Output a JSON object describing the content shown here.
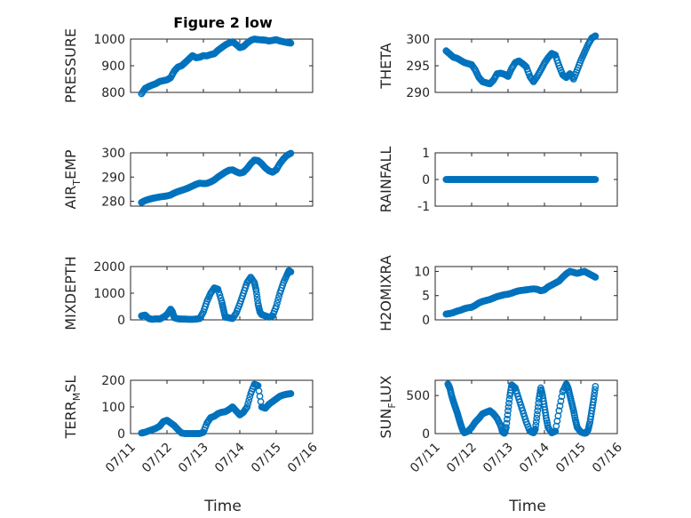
{
  "figure": {
    "title": "Figure 2 low",
    "marker_color": "#0072BD",
    "axis_color": "#262626"
  },
  "chart_data": [
    {
      "type": "scatter",
      "id": "pressure",
      "title": "Figure 2 low",
      "ylabel": "PRESSURE",
      "xlabel": "",
      "ylim": [
        800,
        1000
      ],
      "yticks": [
        800,
        900,
        1000
      ],
      "xlim": [
        0,
        5
      ],
      "xticks": [
        0,
        1,
        2,
        3,
        4,
        5
      ],
      "xticklabels": [],
      "grid": true,
      "x": [
        0.3,
        0.4,
        0.5,
        0.6,
        0.7,
        0.8,
        0.9,
        1.0,
        1.1,
        1.2,
        1.3,
        1.4,
        1.5,
        1.6,
        1.7,
        1.8,
        1.9,
        2.0,
        2.1,
        2.2,
        2.3,
        2.4,
        2.5,
        2.6,
        2.7,
        2.8,
        2.9,
        3.0,
        3.1,
        3.2,
        3.3,
        3.4,
        3.5,
        3.6,
        3.7,
        3.8,
        3.9,
        4.0,
        4.1,
        4.2,
        4.3,
        4.4
      ],
      "y": [
        795,
        815,
        822,
        828,
        833,
        841,
        844,
        847,
        855,
        880,
        895,
        900,
        912,
        925,
        938,
        930,
        932,
        938,
        937,
        942,
        945,
        958,
        968,
        978,
        985,
        990,
        980,
        968,
        972,
        985,
        995,
        1000,
        998,
        997,
        996,
        993,
        995,
        998,
        993,
        990,
        987,
        985
      ]
    },
    {
      "type": "scatter",
      "id": "theta",
      "ylabel": "THETA",
      "xlabel": "",
      "ylim": [
        290,
        300
      ],
      "yticks": [
        290,
        295,
        300
      ],
      "xlim": [
        0,
        5
      ],
      "xticks": [
        0,
        1,
        2,
        3,
        4,
        5
      ],
      "xticklabels": [],
      "grid": true,
      "x": [
        0.3,
        0.4,
        0.5,
        0.6,
        0.7,
        0.8,
        0.9,
        1.0,
        1.1,
        1.2,
        1.3,
        1.4,
        1.5,
        1.6,
        1.7,
        1.8,
        1.9,
        2.0,
        2.1,
        2.2,
        2.3,
        2.4,
        2.5,
        2.6,
        2.7,
        2.8,
        2.9,
        3.0,
        3.1,
        3.2,
        3.3,
        3.4,
        3.5,
        3.6,
        3.7,
        3.8,
        3.9,
        4.0,
        4.1,
        4.2,
        4.3,
        4.4
      ],
      "y": [
        297.8,
        297.2,
        296.6,
        296.4,
        296.0,
        295.6,
        295.4,
        295.2,
        294.2,
        292.8,
        292.0,
        291.8,
        291.6,
        292.3,
        293.5,
        293.6,
        293.4,
        293.0,
        294.5,
        295.6,
        295.9,
        295.4,
        294.8,
        293.0,
        292.0,
        293.0,
        294.2,
        295.5,
        296.5,
        297.3,
        297.0,
        295.0,
        293.3,
        292.8,
        293.5,
        292.5,
        294.2,
        296.0,
        297.5,
        299.0,
        300.2,
        300.6
      ]
    },
    {
      "type": "scatter",
      "id": "air_temp",
      "ylabel": "AIR_TEMP",
      "ylabel_base": "AIR",
      "ylabel_sub": "T",
      "ylabel_rest": "EMP",
      "xlabel": "",
      "ylim": [
        278,
        300
      ],
      "yticks": [
        280,
        290,
        300
      ],
      "xlim": [
        0,
        5
      ],
      "xticks": [
        0,
        1,
        2,
        3,
        4,
        5
      ],
      "xticklabels": [],
      "grid": true,
      "x": [
        0.3,
        0.4,
        0.5,
        0.6,
        0.7,
        0.8,
        0.9,
        1.0,
        1.1,
        1.2,
        1.3,
        1.4,
        1.5,
        1.6,
        1.7,
        1.8,
        1.9,
        2.0,
        2.1,
        2.2,
        2.3,
        2.4,
        2.5,
        2.6,
        2.7,
        2.8,
        2.9,
        3.0,
        3.1,
        3.2,
        3.3,
        3.4,
        3.5,
        3.6,
        3.7,
        3.8,
        3.9,
        4.0,
        4.1,
        4.2,
        4.3,
        4.4
      ],
      "y": [
        279.5,
        280.3,
        280.8,
        281.2,
        281.5,
        281.8,
        282.0,
        282.2,
        282.6,
        283.4,
        284.0,
        284.5,
        285.0,
        285.6,
        286.3,
        287.0,
        287.5,
        287.3,
        287.4,
        288.0,
        288.8,
        290.0,
        291.0,
        292.0,
        292.8,
        293.0,
        292.2,
        291.6,
        292.0,
        293.5,
        295.5,
        297.0,
        296.8,
        295.5,
        293.8,
        292.6,
        292.0,
        293.0,
        295.5,
        297.5,
        299.0,
        299.8
      ]
    },
    {
      "type": "scatter",
      "id": "rainfall",
      "ylabel": "RAINFALL",
      "xlabel": "",
      "ylim": [
        -1,
        1
      ],
      "yticks": [
        -1,
        0,
        1
      ],
      "xlim": [
        0,
        5
      ],
      "xticks": [
        0,
        1,
        2,
        3,
        4,
        5
      ],
      "xticklabels": [],
      "grid": true,
      "x": [
        0.3,
        0.4,
        0.5,
        0.6,
        0.7,
        0.8,
        0.9,
        1.0,
        1.1,
        1.2,
        1.3,
        1.4,
        1.5,
        1.6,
        1.7,
        1.8,
        1.9,
        2.0,
        2.1,
        2.2,
        2.3,
        2.4,
        2.5,
        2.6,
        2.7,
        2.8,
        2.9,
        3.0,
        3.1,
        3.2,
        3.3,
        3.4,
        3.5,
        3.6,
        3.7,
        3.8,
        3.9,
        4.0,
        4.1,
        4.2,
        4.3,
        4.4
      ],
      "y": [
        0,
        0,
        0,
        0,
        0,
        0,
        0,
        0,
        0,
        0,
        0,
        0,
        0,
        0,
        0,
        0,
        0,
        0,
        0,
        0,
        0,
        0,
        0,
        0,
        0,
        0,
        0,
        0,
        0,
        0,
        0,
        0,
        0,
        0,
        0,
        0,
        0,
        0,
        0,
        0,
        0,
        0
      ]
    },
    {
      "type": "scatter",
      "id": "mixdepth",
      "ylabel": "MIXDEPTH",
      "xlabel": "",
      "ylim": [
        0,
        2000
      ],
      "yticks": [
        0,
        1000,
        2000
      ],
      "xlim": [
        0,
        5
      ],
      "xticks": [
        0,
        1,
        2,
        3,
        4,
        5
      ],
      "xticklabels": [],
      "grid": true,
      "x": [
        0.3,
        0.4,
        0.5,
        0.6,
        0.7,
        0.8,
        0.9,
        1.0,
        1.1,
        1.15,
        1.2,
        1.3,
        1.4,
        1.5,
        1.6,
        1.7,
        1.8,
        1.9,
        2.0,
        2.1,
        2.2,
        2.3,
        2.4,
        2.5,
        2.55,
        2.6,
        2.7,
        2.8,
        2.9,
        3.0,
        3.1,
        3.2,
        3.3,
        3.4,
        3.45,
        3.5,
        3.55,
        3.6,
        3.7,
        3.8,
        3.9,
        4.0,
        4.1,
        4.2,
        4.3,
        4.35,
        4.4
      ],
      "y": [
        150,
        180,
        50,
        20,
        40,
        30,
        100,
        200,
        400,
        300,
        80,
        40,
        30,
        30,
        20,
        20,
        30,
        50,
        300,
        700,
        1000,
        1200,
        1150,
        700,
        400,
        100,
        80,
        50,
        250,
        600,
        1000,
        1400,
        1600,
        1400,
        1100,
        600,
        300,
        200,
        150,
        100,
        150,
        500,
        1000,
        1400,
        1700,
        1850,
        1800
      ]
    },
    {
      "type": "scatter",
      "id": "h2omixra",
      "ylabel": "H2OMIXRA",
      "xlabel": "",
      "ylim": [
        0,
        11
      ],
      "yticks": [
        0,
        5,
        10
      ],
      "xlim": [
        0,
        5
      ],
      "xticks": [
        0,
        1,
        2,
        3,
        4,
        5
      ],
      "xticklabels": [],
      "grid": true,
      "x": [
        0.3,
        0.4,
        0.5,
        0.6,
        0.7,
        0.8,
        0.9,
        1.0,
        1.1,
        1.2,
        1.3,
        1.4,
        1.5,
        1.6,
        1.7,
        1.8,
        1.9,
        2.0,
        2.1,
        2.2,
        2.3,
        2.4,
        2.5,
        2.6,
        2.7,
        2.8,
        2.9,
        3.0,
        3.1,
        3.2,
        3.3,
        3.4,
        3.5,
        3.6,
        3.7,
        3.8,
        3.9,
        4.0,
        4.1,
        4.2,
        4.3,
        4.4
      ],
      "y": [
        1.2,
        1.3,
        1.5,
        1.8,
        2.0,
        2.3,
        2.5,
        2.6,
        3.0,
        3.5,
        3.8,
        4.0,
        4.2,
        4.5,
        4.8,
        5.0,
        5.2,
        5.3,
        5.5,
        5.8,
        6.0,
        6.1,
        6.2,
        6.3,
        6.4,
        6.3,
        6.0,
        6.2,
        6.8,
        7.2,
        7.6,
        8.0,
        8.8,
        9.5,
        10.0,
        9.8,
        9.6,
        9.8,
        10.0,
        9.6,
        9.2,
        8.8
      ]
    },
    {
      "type": "scatter",
      "id": "terr_msl",
      "ylabel": "TERR_MSL",
      "ylabel_base": "TERR",
      "ylabel_sub": "M",
      "ylabel_rest": "SL",
      "xlabel": "Time",
      "ylim": [
        0,
        200
      ],
      "yticks": [
        0,
        100,
        200
      ],
      "xlim": [
        0,
        5
      ],
      "xticks": [
        0,
        1,
        2,
        3,
        4,
        5
      ],
      "xticklabels": [
        "07/11",
        "07/12",
        "07/13",
        "07/14",
        "07/15",
        "07/16"
      ],
      "grid": true,
      "x": [
        0.3,
        0.4,
        0.5,
        0.6,
        0.7,
        0.8,
        0.9,
        1.0,
        1.1,
        1.2,
        1.3,
        1.4,
        1.5,
        1.6,
        1.7,
        1.8,
        1.9,
        2.0,
        2.1,
        2.2,
        2.3,
        2.4,
        2.5,
        2.6,
        2.7,
        2.8,
        2.9,
        3.0,
        3.1,
        3.2,
        3.3,
        3.4,
        3.5,
        3.6,
        3.7,
        3.8,
        3.9,
        4.0,
        4.1,
        4.2,
        4.3,
        4.4
      ],
      "y": [
        2,
        5,
        10,
        15,
        20,
        28,
        45,
        50,
        40,
        30,
        15,
        2,
        0,
        0,
        0,
        0,
        0,
        5,
        40,
        60,
        65,
        75,
        80,
        82,
        90,
        100,
        85,
        70,
        80,
        100,
        150,
        185,
        180,
        100,
        95,
        110,
        120,
        130,
        140,
        145,
        148,
        150
      ]
    },
    {
      "type": "scatter",
      "id": "sun_flux",
      "ylabel": "SUN_FLUX",
      "ylabel_base": "SUN",
      "ylabel_sub": "F",
      "ylabel_rest": "LUX",
      "xlabel": "Time",
      "ylim": [
        0,
        700
      ],
      "yticks": [
        0,
        500
      ],
      "xlim": [
        0,
        5
      ],
      "xticks": [
        0,
        1,
        2,
        3,
        4,
        5
      ],
      "xticklabels": [
        "07/11",
        "07/12",
        "07/13",
        "07/14",
        "07/15",
        "07/16"
      ],
      "grid": true,
      "x": [
        0.35,
        0.4,
        0.45,
        0.5,
        0.55,
        0.6,
        0.65,
        0.7,
        0.75,
        0.8,
        0.9,
        1.0,
        1.1,
        1.2,
        1.3,
        1.4,
        1.5,
        1.6,
        1.7,
        1.8,
        1.85,
        1.9,
        1.95,
        2.0,
        2.05,
        2.1,
        2.2,
        2.3,
        2.4,
        2.5,
        2.6,
        2.7,
        2.75,
        2.8,
        2.85,
        2.9,
        2.95,
        3.0,
        3.05,
        3.1,
        3.2,
        3.3,
        3.4,
        3.5,
        3.6,
        3.65,
        3.7,
        3.75,
        3.8,
        3.85,
        3.9,
        4.0,
        4.1,
        4.15,
        4.2,
        4.25,
        4.3,
        4.35,
        4.4
      ],
      "y": [
        650,
        600,
        500,
        420,
        350,
        280,
        200,
        120,
        50,
        10,
        30,
        80,
        150,
        200,
        260,
        280,
        300,
        260,
        200,
        100,
        20,
        5,
        80,
        300,
        500,
        640,
        600,
        450,
        300,
        150,
        30,
        10,
        60,
        250,
        450,
        600,
        500,
        350,
        200,
        80,
        10,
        30,
        300,
        550,
        650,
        600,
        500,
        400,
        300,
        180,
        80,
        20,
        5,
        10,
        50,
        150,
        300,
        450,
        620
      ]
    }
  ]
}
